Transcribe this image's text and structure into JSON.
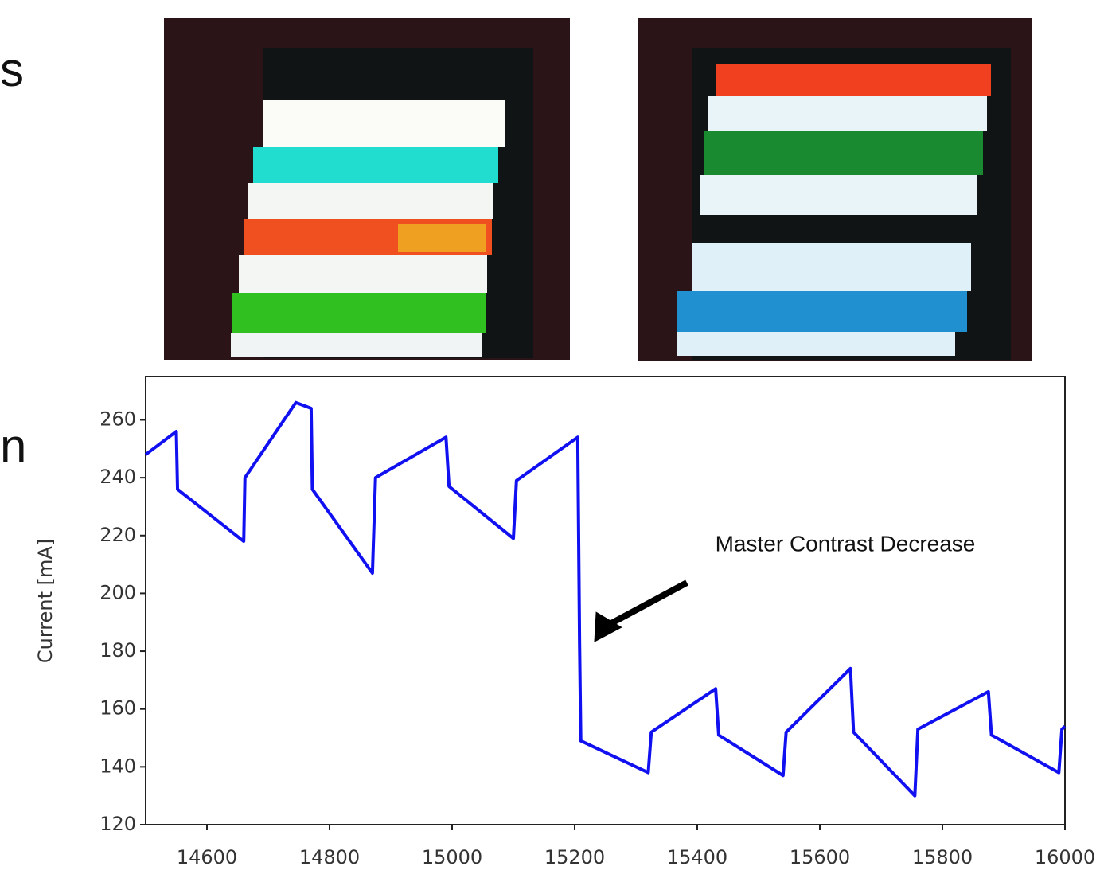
{
  "slide_fragments": [
    "s",
    "n"
  ],
  "chart_data": {
    "type": "line",
    "y_label": "Current [mA]",
    "annotation": "Master Contrast Decrease",
    "series": [
      {
        "color": "#1010f0",
        "x": [
          14500,
          14550,
          14552,
          14660,
          14662,
          14745,
          14770,
          14772,
          14870,
          14875,
          14990,
          14995,
          15100,
          15105,
          15205,
          15208,
          15210,
          15320,
          15325,
          15430,
          15435,
          15540,
          15545,
          15650,
          15655,
          15755,
          15760,
          15875,
          15880,
          15990,
          15995,
          16000
        ],
        "values": [
          248,
          256,
          236,
          218,
          240,
          266,
          264,
          236,
          207,
          240,
          254,
          237,
          219,
          239,
          254,
          183,
          149,
          138,
          152,
          167,
          151,
          137,
          152,
          174,
          152,
          130,
          153,
          166,
          151,
          138,
          153,
          154
        ]
      }
    ],
    "xlim": [
      14500,
      16000
    ],
    "ylim": [
      120,
      275
    ],
    "xticks": [
      14600,
      14800,
      15000,
      15200,
      15400,
      15600,
      15800,
      16000
    ],
    "yticks": [
      120,
      140,
      160,
      180,
      200,
      220,
      240,
      260
    ]
  }
}
